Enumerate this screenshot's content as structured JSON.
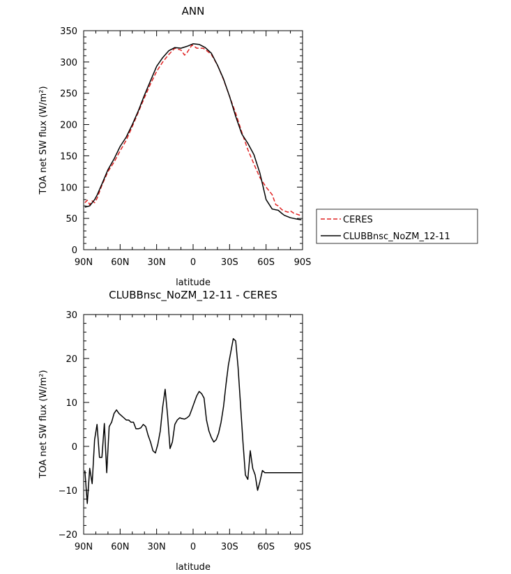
{
  "chart_data": [
    {
      "type": "line",
      "title": "ANN",
      "xlabel": "latitude",
      "ylabel": "TOA net SW flux (W/m²)",
      "xlim": [
        90,
        -90
      ],
      "ylim": [
        0,
        350
      ],
      "x_ticks": [
        90,
        60,
        30,
        0,
        -30,
        -60,
        -90
      ],
      "x_tick_labels": [
        "90N",
        "60N",
        "30N",
        "0",
        "30S",
        "60S",
        "90S"
      ],
      "y_ticks": [
        0,
        50,
        100,
        150,
        200,
        250,
        300,
        350
      ],
      "grid": false,
      "legend": "right",
      "series": [
        {
          "name": "CERES",
          "color": "#e02020",
          "dash": "dashed",
          "x": [
            89,
            87,
            85,
            83,
            81,
            79,
            75,
            70,
            65,
            60,
            55,
            50,
            45,
            40,
            35,
            30,
            25,
            20,
            15,
            10,
            7,
            5,
            3,
            1,
            -1,
            -3,
            -5,
            -8,
            -10,
            -15,
            -20,
            -25,
            -30,
            -35,
            -40,
            -45,
            -50,
            -55,
            -60,
            -65,
            -68,
            -70,
            -73,
            -75,
            -78,
            -80,
            -83,
            -85,
            -88,
            -89
          ],
          "y": [
            75,
            79,
            72,
            78,
            75,
            82,
            103,
            125,
            140,
            158,
            175,
            197,
            220,
            243,
            265,
            285,
            300,
            312,
            322,
            319,
            311,
            315,
            321,
            327,
            325,
            322,
            322,
            322,
            320,
            312,
            295,
            272,
            245,
            218,
            188,
            160,
            137,
            115,
            100,
            88,
            72,
            70,
            64,
            62,
            60,
            62,
            58,
            57,
            55,
            55
          ]
        },
        {
          "name": "CLUBBnsc_NoZM_12-11",
          "color": "#000000",
          "dash": "solid",
          "x": [
            89,
            87,
            85,
            83,
            81,
            79,
            75,
            70,
            65,
            60,
            55,
            50,
            45,
            40,
            35,
            30,
            25,
            20,
            15,
            10,
            5,
            0,
            -5,
            -10,
            -15,
            -20,
            -25,
            -30,
            -35,
            -40,
            -45,
            -50,
            -55,
            -60,
            -65,
            -70,
            -73,
            -75,
            -80,
            -85,
            -88,
            -89
          ],
          "y": [
            68,
            69,
            70,
            75,
            80,
            87,
            105,
            128,
            145,
            165,
            180,
            200,
            222,
            247,
            270,
            293,
            307,
            318,
            323,
            322,
            325,
            329,
            328,
            323,
            314,
            295,
            273,
            245,
            213,
            185,
            170,
            152,
            122,
            80,
            65,
            63,
            58,
            55,
            51,
            49,
            48,
            48
          ]
        }
      ]
    },
    {
      "type": "line",
      "title": "CLUBBnsc_NoZM_12-11 - CERES",
      "xlabel": "latitude",
      "ylabel": "TOA net SW flux (W/m²)",
      "xlim": [
        90,
        -90
      ],
      "ylim": [
        -20,
        30
      ],
      "x_ticks": [
        90,
        60,
        30,
        0,
        -30,
        -60,
        -90
      ],
      "x_tick_labels": [
        "90N",
        "60N",
        "30N",
        "0",
        "30S",
        "60S",
        "90S"
      ],
      "y_ticks": [
        -20,
        -10,
        0,
        10,
        20,
        30
      ],
      "grid": false,
      "series": [
        {
          "color": "#000000",
          "dash": "solid",
          "x": [
            89,
            87,
            85,
            83,
            81,
            79,
            77,
            75,
            73,
            71,
            69,
            67,
            65,
            63,
            61,
            59,
            57,
            55,
            53,
            51,
            49,
            47,
            45,
            43,
            41,
            39,
            37,
            35,
            33,
            31,
            29,
            27,
            25,
            23,
            21,
            19,
            17,
            15,
            13,
            11,
            9,
            7,
            5,
            3,
            1,
            -1,
            -3,
            -5,
            -7,
            -9,
            -11,
            -13,
            -15,
            -17,
            -19,
            -21,
            -23,
            -25,
            -27,
            -29,
            -31,
            -33,
            -35,
            -37,
            -39,
            -41,
            -43,
            -45,
            -47,
            -49,
            -51,
            -53,
            -55,
            -57,
            -59,
            -61,
            -63,
            -65,
            -67,
            -69,
            -71,
            -73,
            -75,
            -77,
            -79,
            -81,
            -83,
            -85,
            -87,
            -89
          ],
          "y": [
            -5.5,
            -13,
            -5,
            -8.5,
            1.5,
            5,
            -2.5,
            -2.5,
            5.2,
            -6,
            4.5,
            5.5,
            7.5,
            8.3,
            7.5,
            7,
            6.5,
            6,
            6,
            5.5,
            5.5,
            4,
            4,
            4.2,
            5,
            4.5,
            2.5,
            1,
            -1,
            -1.5,
            0.5,
            3.5,
            9,
            13,
            7,
            -0.5,
            1,
            5,
            6,
            6.5,
            6.3,
            6.2,
            6.5,
            7,
            8.5,
            10,
            11.5,
            12.5,
            12,
            11,
            6,
            3.5,
            2,
            1,
            1.5,
            3,
            5.5,
            9,
            14,
            18.5,
            21.5,
            24.5,
            24,
            18,
            9.5,
            1,
            -6.5,
            -7.5,
            -1,
            -5,
            -6.5,
            -10,
            -8,
            -5.5,
            -6,
            -6,
            -6,
            -6,
            -6,
            -6,
            -6,
            -6,
            -6,
            -6,
            -6,
            -6,
            -6,
            -6,
            -6,
            -6
          ]
        }
      ]
    }
  ]
}
